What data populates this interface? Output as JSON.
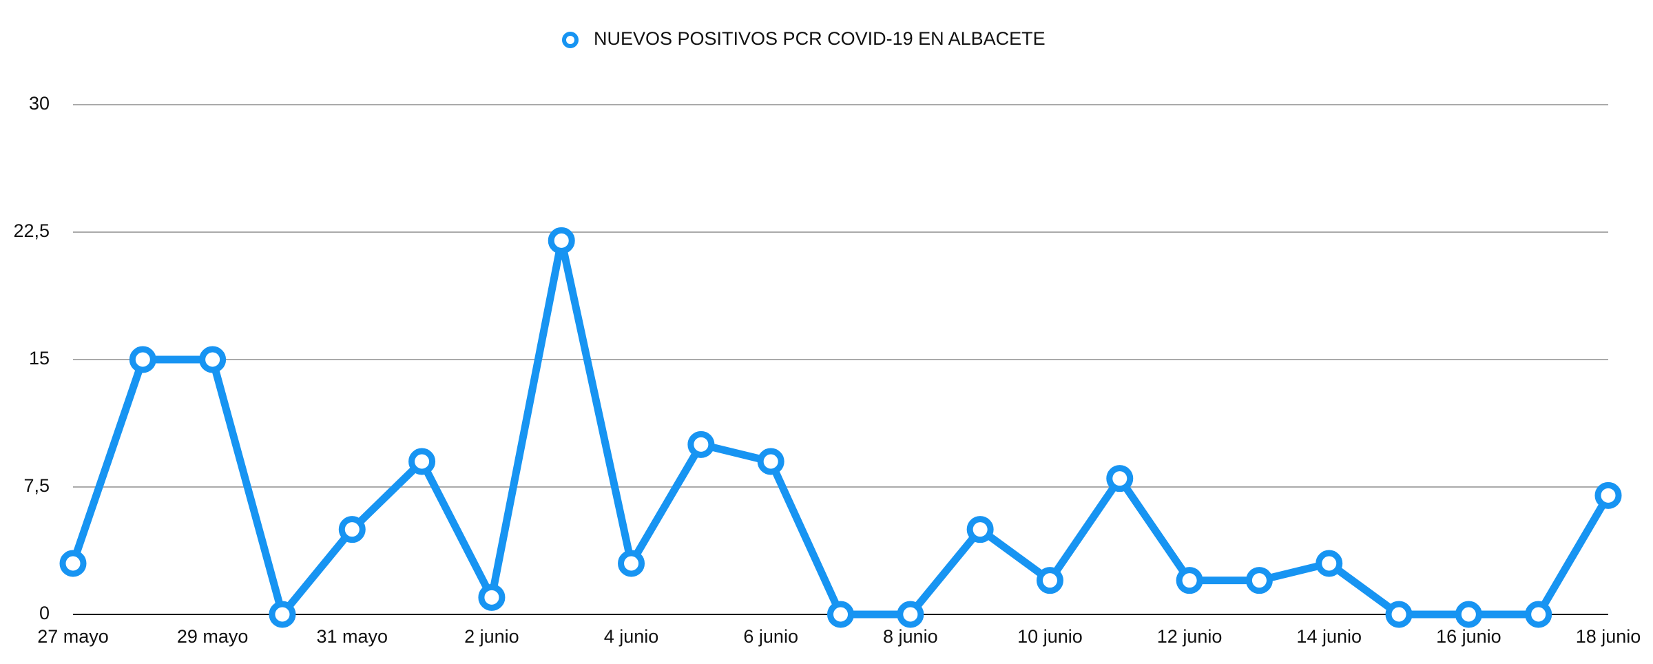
{
  "chart_data": {
    "type": "line",
    "categories": [
      "27 mayo",
      null,
      "29 mayo",
      null,
      "31 mayo",
      null,
      "2 junio",
      null,
      "4 junio",
      null,
      "6 junio",
      null,
      "8 junio",
      null,
      "10 junio",
      null,
      "12 junio",
      null,
      "14 junio",
      null,
      "16 junio",
      null,
      "18 junio"
    ],
    "series": [
      {
        "name": "NUEVOS POSITIVOS PCR COVID-19 EN ALBACETE",
        "color": "#1794f2",
        "values": [
          3,
          15,
          15,
          0,
          5,
          9,
          1,
          22,
          3,
          10,
          9,
          0,
          0,
          5,
          2,
          8,
          2,
          2,
          3,
          0,
          0,
          0,
          7
        ]
      }
    ],
    "ylim": [
      0,
      30
    ],
    "yticks": [
      0,
      {
        "value": 7.5,
        "label": "7,5"
      },
      15,
      {
        "value": 22.5,
        "label": "22,5"
      },
      30
    ],
    "grid": true,
    "legend": "top"
  }
}
